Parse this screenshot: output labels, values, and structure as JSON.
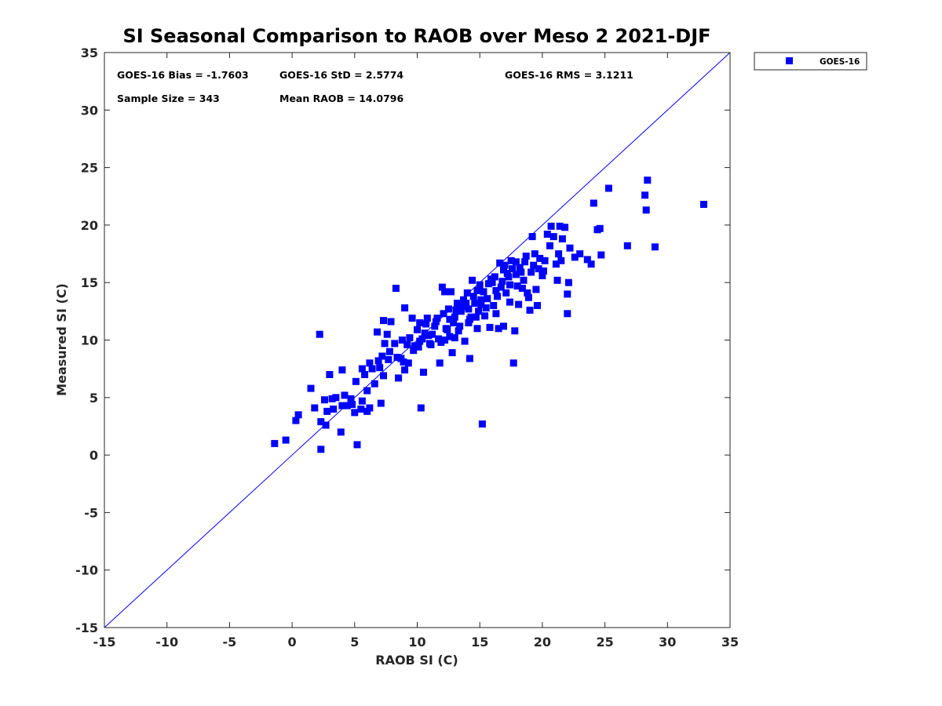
{
  "chart_data": {
    "type": "scatter",
    "title": "SI Seasonal Comparison to RAOB over Meso 2 2021-DJF",
    "xlabel": "RAOB SI (C)",
    "ylabel": "Measured SI (C)",
    "xlim": [
      -15,
      35
    ],
    "ylim": [
      -15,
      35
    ],
    "xticks": [
      "-15",
      "-10",
      "-5",
      "0",
      "5",
      "10",
      "15",
      "20",
      "25",
      "30",
      "35"
    ],
    "yticks": [
      "-15",
      "-10",
      "-5",
      "0",
      "5",
      "10",
      "15",
      "20",
      "25",
      "30",
      "35"
    ],
    "reference_line": {
      "from": [
        -15,
        -15
      ],
      "to": [
        35,
        35
      ],
      "color": "#0000ff"
    },
    "legend": {
      "entries": [
        "GOES-16"
      ],
      "placement": "outside-top-right"
    },
    "stats": {
      "bias": "GOES-16 Bias = -1.7603",
      "std": "GOES-16 StD = 2.5774",
      "rms": "GOES-16 RMS = 3.1211",
      "sample_size": "Sample Size = 343",
      "mean_raob": "Mean RAOB = 14.0796"
    },
    "series": [
      {
        "name": "GOES-16",
        "color": "#0000ff",
        "marker": "square",
        "points": [
          [
            -1.4,
            1.0
          ],
          [
            -0.5,
            1.3
          ],
          [
            0.3,
            3.0
          ],
          [
            0.5,
            3.5
          ],
          [
            1.5,
            5.8
          ],
          [
            1.8,
            4.1
          ],
          [
            2.2,
            10.5
          ],
          [
            2.3,
            2.9
          ],
          [
            2.3,
            0.5
          ],
          [
            2.6,
            4.8
          ],
          [
            2.7,
            2.6
          ],
          [
            2.8,
            3.8
          ],
          [
            3.0,
            7.0
          ],
          [
            3.2,
            4.9
          ],
          [
            3.3,
            4.0
          ],
          [
            3.5,
            5.0
          ],
          [
            3.9,
            2.0
          ],
          [
            4.0,
            7.4
          ],
          [
            4.0,
            4.3
          ],
          [
            4.2,
            5.2
          ],
          [
            4.4,
            4.3
          ],
          [
            4.7,
            4.9
          ],
          [
            4.8,
            4.4
          ],
          [
            5.0,
            3.7
          ],
          [
            5.1,
            6.4
          ],
          [
            5.2,
            0.9
          ],
          [
            5.5,
            4.0
          ],
          [
            5.6,
            4.7
          ],
          [
            5.6,
            7.5
          ],
          [
            5.8,
            7.0
          ],
          [
            6.0,
            5.6
          ],
          [
            6.0,
            3.8
          ],
          [
            6.2,
            4.1
          ],
          [
            6.2,
            8.0
          ],
          [
            6.4,
            7.5
          ],
          [
            6.6,
            6.2
          ],
          [
            6.8,
            10.7
          ],
          [
            6.9,
            8.2
          ],
          [
            7.0,
            7.6
          ],
          [
            7.1,
            4.5
          ],
          [
            7.2,
            8.6
          ],
          [
            7.3,
            11.7
          ],
          [
            7.3,
            6.9
          ],
          [
            7.4,
            9.7
          ],
          [
            7.6,
            10.5
          ],
          [
            7.7,
            8.3
          ],
          [
            7.8,
            9.0
          ],
          [
            7.9,
            11.6
          ],
          [
            8.2,
            9.7
          ],
          [
            8.3,
            14.5
          ],
          [
            8.4,
            8.5
          ],
          [
            8.5,
            6.7
          ],
          [
            8.7,
            8.4
          ],
          [
            8.8,
            10.0
          ],
          [
            8.9,
            8.1
          ],
          [
            9.0,
            12.8
          ],
          [
            9.0,
            7.4
          ],
          [
            9.2,
            9.6
          ],
          [
            9.3,
            8.0
          ],
          [
            9.4,
            10.2
          ],
          [
            9.6,
            11.9
          ],
          [
            9.8,
            9.5
          ],
          [
            10.0,
            10.9
          ],
          [
            10.1,
            9.4
          ],
          [
            10.2,
            11.5
          ],
          [
            10.3,
            4.1
          ],
          [
            10.4,
            10.1
          ],
          [
            10.5,
            7.2
          ],
          [
            10.6,
            10.6
          ],
          [
            10.8,
            11.9
          ],
          [
            11.0,
            9.7
          ],
          [
            11.2,
            10.5
          ],
          [
            11.5,
            11.6
          ],
          [
            11.8,
            8.0
          ],
          [
            11.9,
            9.8
          ],
          [
            12.0,
            14.6
          ],
          [
            12.2,
            14.2
          ],
          [
            12.3,
            11.0
          ],
          [
            12.5,
            12.7
          ],
          [
            12.6,
            10.3
          ],
          [
            12.7,
            14.2
          ],
          [
            12.8,
            8.9
          ],
          [
            13.0,
            12.0
          ],
          [
            13.2,
            13.2
          ],
          [
            13.4,
            11.2
          ],
          [
            13.5,
            12.5
          ],
          [
            13.7,
            13.5
          ],
          [
            13.8,
            9.9
          ],
          [
            14.0,
            14.1
          ],
          [
            14.1,
            11.5
          ],
          [
            14.2,
            8.4
          ],
          [
            14.3,
            12.0
          ],
          [
            14.4,
            15.2
          ],
          [
            14.6,
            13.2
          ],
          [
            14.7,
            12.0
          ],
          [
            14.8,
            11.0
          ],
          [
            15.0,
            14.8
          ],
          [
            15.1,
            13.5
          ],
          [
            15.2,
            2.7
          ],
          [
            15.4,
            12.1
          ],
          [
            15.6,
            13.6
          ],
          [
            15.8,
            11.1
          ],
          [
            16.0,
            15.0
          ],
          [
            16.1,
            13.0
          ],
          [
            16.3,
            14.3
          ],
          [
            16.5,
            11.0
          ],
          [
            16.6,
            16.7
          ],
          [
            16.8,
            15.1
          ],
          [
            16.9,
            11.2
          ],
          [
            17.0,
            16.5
          ],
          [
            17.1,
            14.1
          ],
          [
            17.3,
            15.5
          ],
          [
            17.4,
            13.3
          ],
          [
            17.6,
            16.2
          ],
          [
            17.7,
            8.0
          ],
          [
            17.8,
            10.8
          ],
          [
            17.9,
            15.7
          ],
          [
            18.0,
            14.7
          ],
          [
            18.1,
            13.1
          ],
          [
            18.3,
            15.9
          ],
          [
            18.4,
            14.5
          ],
          [
            18.6,
            16.8
          ],
          [
            18.8,
            14.1
          ],
          [
            19.0,
            12.6
          ],
          [
            19.2,
            19.0
          ],
          [
            19.3,
            16.5
          ],
          [
            19.4,
            17.5
          ],
          [
            19.6,
            13.0
          ],
          [
            19.8,
            17.1
          ],
          [
            20.0,
            15.6
          ],
          [
            20.2,
            16.9
          ],
          [
            20.4,
            19.2
          ],
          [
            20.6,
            18.2
          ],
          [
            20.7,
            19.9
          ],
          [
            20.9,
            19.0
          ],
          [
            21.1,
            16.6
          ],
          [
            21.2,
            15.2
          ],
          [
            21.3,
            17.5
          ],
          [
            21.4,
            19.9
          ],
          [
            21.5,
            16.9
          ],
          [
            21.6,
            18.8
          ],
          [
            21.8,
            19.8
          ],
          [
            22.0,
            14.0
          ],
          [
            22.0,
            12.3
          ],
          [
            22.1,
            15.0
          ],
          [
            22.2,
            18.0
          ],
          [
            22.6,
            17.2
          ],
          [
            23.0,
            17.5
          ],
          [
            23.6,
            17.0
          ],
          [
            23.9,
            16.6
          ],
          [
            24.1,
            21.9
          ],
          [
            24.4,
            19.6
          ],
          [
            24.6,
            19.7
          ],
          [
            24.7,
            17.4
          ],
          [
            25.3,
            23.2
          ],
          [
            26.8,
            18.2
          ],
          [
            28.2,
            22.6
          ],
          [
            28.3,
            21.3
          ],
          [
            28.4,
            23.9
          ],
          [
            29.0,
            18.1
          ],
          [
            32.9,
            21.8
          ],
          [
            11.4,
            11.2
          ],
          [
            12.1,
            12.3
          ],
          [
            12.9,
            11.5
          ],
          [
            13.3,
            10.8
          ],
          [
            13.6,
            12.9
          ],
          [
            14.5,
            13.8
          ],
          [
            14.9,
            12.5
          ],
          [
            15.3,
            14.2
          ],
          [
            15.7,
            14.9
          ],
          [
            16.2,
            15.5
          ],
          [
            16.7,
            14.6
          ],
          [
            17.2,
            15.8
          ],
          [
            17.5,
            16.9
          ],
          [
            18.2,
            16.3
          ],
          [
            18.5,
            15.2
          ],
          [
            19.1,
            15.9
          ],
          [
            19.5,
            14.4
          ],
          [
            16.4,
            13.8
          ],
          [
            15.5,
            12.8
          ],
          [
            14.1,
            12.7
          ],
          [
            13.9,
            13.2
          ],
          [
            12.6,
            11.8
          ],
          [
            11.7,
            10.1
          ],
          [
            10.9,
            10.4
          ],
          [
            10.7,
            11.4
          ],
          [
            17.9,
            16.8
          ],
          [
            18.7,
            17.3
          ],
          [
            16.9,
            16.1
          ],
          [
            15.9,
            15.3
          ],
          [
            14.8,
            14.3
          ],
          [
            13.1,
            12.6
          ],
          [
            12.4,
            10.9
          ],
          [
            11.6,
            11.9
          ],
          [
            17.4,
            14.8
          ],
          [
            16.3,
            12.3
          ],
          [
            19.7,
            16.2
          ],
          [
            20.1,
            16.0
          ],
          [
            18.9,
            13.7
          ],
          [
            15.1,
            13.1
          ],
          [
            14.2,
            11.8
          ],
          [
            13.0,
            10.2
          ],
          [
            12.2,
            10.0
          ],
          [
            11.1,
            9.6
          ],
          [
            10.2,
            9.9
          ],
          [
            9.7,
            9.1
          ]
        ]
      }
    ]
  }
}
